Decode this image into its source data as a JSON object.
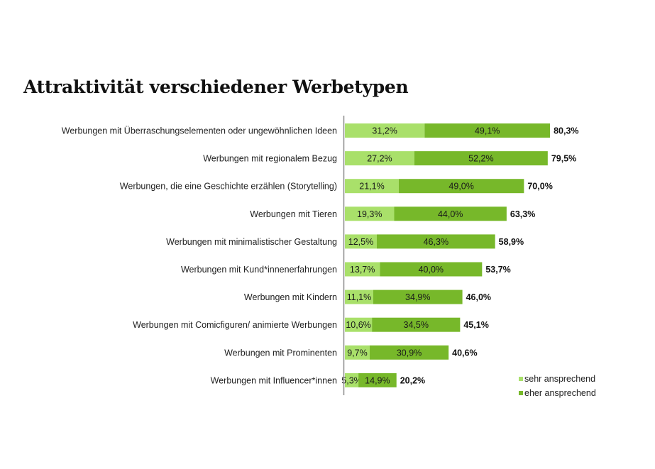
{
  "chart_data": {
    "type": "bar",
    "orientation": "horizontal",
    "stacked": true,
    "title": "Attraktivität verschiedener Werbetypen",
    "xlabel": "",
    "ylabel": "",
    "xlim": [
      0,
      100
    ],
    "grid": false,
    "legend_position": "bottom-right",
    "categories": [
      "Werbungen mit Überraschungselementen oder ungewöhnlichen Ideen",
      "Werbungen mit regionalem Bezug",
      "Werbungen, die eine Geschichte erzählen (Storytelling)",
      "Werbungen mit Tieren",
      "Werbungen mit minimalistischer Gestaltung",
      "Werbungen mit Kund*innenerfahrungen",
      "Werbungen mit Kindern",
      "Werbungen mit Comicfiguren/ animierte Werbungen",
      "Werbungen mit Prominenten",
      "Werbungen mit Influencer*innen"
    ],
    "series": [
      {
        "name": "sehr ansprechend",
        "color": "#a9e06a",
        "values": [
          31.2,
          27.2,
          21.1,
          19.3,
          12.5,
          13.7,
          11.1,
          10.6,
          9.7,
          5.3
        ],
        "labels": [
          "31,2%",
          "27,2%",
          "21,1%",
          "19,3%",
          "12,5%",
          "13,7%",
          "11,1%",
          "10,6%",
          "9,7%",
          "5,3%"
        ]
      },
      {
        "name": "eher ansprechend",
        "color": "#77b82a",
        "values": [
          49.1,
          52.2,
          49.0,
          44.0,
          46.3,
          40.0,
          34.9,
          34.5,
          30.9,
          14.9
        ],
        "labels": [
          "49,1%",
          "52,2%",
          "49,0%",
          "44,0%",
          "46,3%",
          "40,0%",
          "34,9%",
          "34,5%",
          "30,9%",
          "14,9%"
        ]
      }
    ],
    "totals": [
      80.3,
      79.5,
      70.0,
      63.3,
      58.9,
      53.7,
      46.0,
      45.1,
      40.6,
      20.2
    ],
    "total_labels": [
      "80,3%",
      "79,5%",
      "70,0%",
      "63,3%",
      "58,9%",
      "53,7%",
      "46,0%",
      "45,1%",
      "40,6%",
      "20,2%"
    ],
    "axis_color": "#8c8c8c"
  }
}
